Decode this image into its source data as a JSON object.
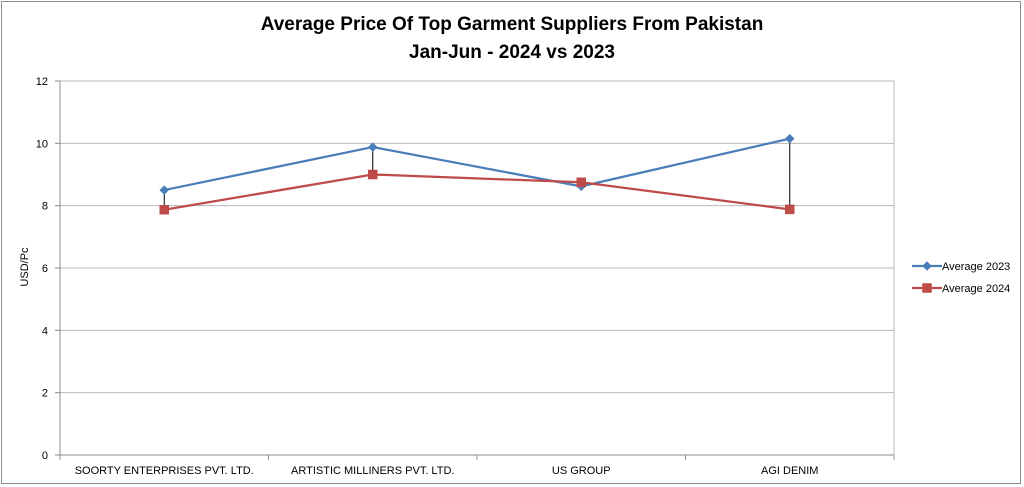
{
  "chart_data": {
    "type": "line",
    "title": "Average Price Of Top Garment Suppliers From Pakistan",
    "subtitle": "Jan-Jun - 2024 vs 2023",
    "xlabel": "",
    "ylabel": "USD/Pc",
    "ylim": [
      0,
      12
    ],
    "yticks": [
      0,
      2,
      4,
      6,
      8,
      10,
      12
    ],
    "grid": true,
    "legend_position": "right",
    "categories": [
      "SOORTY ENTERPRISES PVT. LTD.",
      "ARTISTIC MILLINERS PVT. LTD.",
      "US GROUP",
      "AGI DENIM"
    ],
    "series": [
      {
        "name": "Average 2023",
        "marker": "diamond",
        "color": "#4a7ebb",
        "values": [
          8.5,
          9.88,
          8.62,
          10.15
        ]
      },
      {
        "name": "Average 2024",
        "marker": "square",
        "color": "#be4b48",
        "values": [
          7.87,
          9.0,
          8.75,
          7.88
        ]
      }
    ],
    "drop_lines": true
  }
}
